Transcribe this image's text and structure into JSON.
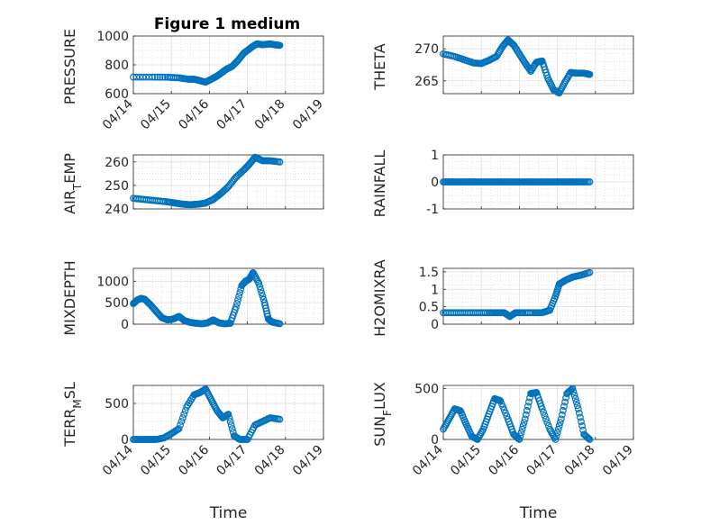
{
  "figure": {
    "title": "Figure 1 medium"
  },
  "chart_data": [
    {
      "type": "scatter",
      "subplot": "1",
      "ylabel": "PRESSURE",
      "ylim": [
        600,
        1000
      ],
      "yticks": [
        "600",
        "800",
        "1000"
      ],
      "xlim": [
        "04/14",
        "04/19"
      ],
      "xticks": [
        "04/14",
        "04/15",
        "04/16",
        "04/17",
        "04/18",
        "04/19"
      ],
      "xlabel": "",
      "grid": true,
      "minor_grid": true,
      "marker": "open-circle",
      "color": "#0072BD",
      "series": [
        {
          "x": [
            0.0,
            0.5,
            0.9,
            1.2,
            1.45,
            1.6,
            1.75,
            1.9,
            2.05,
            2.2,
            2.35,
            2.45,
            2.6,
            2.75,
            2.9,
            3.05,
            3.15,
            3.25,
            3.4,
            3.6,
            3.75,
            3.85
          ],
          "y": [
            715,
            715,
            714,
            710,
            700,
            700,
            690,
            680,
            700,
            722,
            750,
            770,
            790,
            830,
            880,
            910,
            930,
            945,
            940,
            945,
            938,
            935
          ]
        }
      ]
    },
    {
      "type": "scatter",
      "subplot": "2",
      "ylabel": "THETA",
      "ylim": [
        263,
        272
      ],
      "yticks": [
        "265",
        "270"
      ],
      "xlim": [
        "04/14",
        "04/19"
      ],
      "xlabel": "",
      "grid": true,
      "minor_grid": true,
      "series": [
        {
          "x": [
            0.0,
            0.3,
            0.55,
            0.8,
            1.0,
            1.2,
            1.4,
            1.55,
            1.7,
            1.85,
            2.0,
            2.15,
            2.3,
            2.45,
            2.6,
            2.75,
            2.9,
            3.05,
            3.2,
            3.35,
            3.5,
            3.7,
            3.85
          ],
          "y": [
            269.2,
            268.8,
            268.3,
            267.8,
            267.7,
            268.2,
            268.8,
            270.3,
            271.4,
            270.6,
            269.2,
            267.8,
            266.5,
            267.9,
            268.1,
            265.4,
            263.6,
            263.1,
            264.8,
            266.3,
            266.2,
            266.2,
            266.0
          ]
        }
      ]
    },
    {
      "type": "scatter",
      "subplot": "3",
      "ylabel": "AIR_TEMP",
      "ylim": [
        240,
        263
      ],
      "yticks": [
        "240",
        "250",
        "260"
      ],
      "xlim": [
        "04/14",
        "04/19"
      ],
      "xlabel": "",
      "grid": true,
      "minor_grid": true,
      "series": [
        {
          "x": [
            0.0,
            0.3,
            0.6,
            0.9,
            1.1,
            1.3,
            1.5,
            1.7,
            1.9,
            2.1,
            2.3,
            2.5,
            2.7,
            2.9,
            3.05,
            3.2,
            3.4,
            3.6,
            3.85
          ],
          "y": [
            244.5,
            244,
            243.5,
            243,
            242.5,
            242,
            241.8,
            242,
            242.5,
            244,
            246.5,
            249.5,
            253.5,
            256.5,
            259,
            262,
            260.5,
            260.5,
            260
          ]
        }
      ]
    },
    {
      "type": "scatter",
      "subplot": "4",
      "ylabel": "RAINFALL",
      "ylim": [
        -1,
        1
      ],
      "yticks": [
        "-1",
        "0",
        "1"
      ],
      "xlim": [
        "04/14",
        "04/19"
      ],
      "xlabel": "",
      "grid": true,
      "minor_grid": true,
      "series": [
        {
          "x": [
            0.0,
            0.2,
            0.4,
            0.6,
            0.8,
            1.0,
            1.2,
            1.4,
            1.6,
            1.8,
            2.0,
            2.2,
            2.4,
            2.6,
            2.8,
            3.0,
            3.2,
            3.4,
            3.6,
            3.85
          ],
          "y": [
            0,
            0,
            0,
            0,
            0,
            0,
            0,
            0,
            0,
            0,
            0,
            0,
            0,
            0,
            0,
            0,
            0,
            0,
            0,
            0
          ]
        }
      ]
    },
    {
      "type": "scatter",
      "subplot": "5",
      "ylabel": "MIXDEPTH",
      "ylim": [
        0,
        1300
      ],
      "yticks": [
        "0",
        "500",
        "1000"
      ],
      "xlim": [
        "04/14",
        "04/19"
      ],
      "xlabel": "",
      "grid": true,
      "minor_grid": true,
      "series": [
        {
          "x": [
            0.0,
            0.1,
            0.2,
            0.3,
            0.45,
            0.6,
            0.75,
            0.9,
            1.05,
            1.2,
            1.35,
            1.5,
            1.65,
            1.8,
            1.95,
            2.1,
            2.25,
            2.4,
            2.55,
            2.7,
            2.85,
            2.95,
            3.05,
            3.15,
            3.3,
            3.45,
            3.55,
            3.65,
            3.85
          ],
          "y": [
            480,
            560,
            600,
            580,
            450,
            300,
            150,
            100,
            120,
            180,
            80,
            40,
            20,
            10,
            30,
            100,
            30,
            10,
            20,
            400,
            900,
            1000,
            1050,
            1200,
            950,
            500,
            120,
            50,
            10
          ]
        }
      ]
    },
    {
      "type": "scatter",
      "subplot": "6",
      "ylabel": "H2OMIXRA",
      "ylim": [
        0,
        1.6
      ],
      "yticks": [
        "0",
        "0.5",
        "1",
        "1.5"
      ],
      "xlim": [
        "04/14",
        "04/19"
      ],
      "xlabel": "",
      "grid": true,
      "minor_grid": true,
      "series": [
        {
          "x": [
            0.0,
            0.3,
            0.6,
            0.9,
            1.2,
            1.4,
            1.6,
            1.75,
            1.9,
            2.1,
            2.4,
            2.6,
            2.8,
            2.95,
            3.05,
            3.2,
            3.4,
            3.6,
            3.85
          ],
          "y": [
            0.33,
            0.33,
            0.33,
            0.33,
            0.33,
            0.33,
            0.33,
            0.22,
            0.33,
            0.33,
            0.33,
            0.33,
            0.4,
            0.8,
            1.15,
            1.25,
            1.35,
            1.4,
            1.48
          ]
        }
      ]
    },
    {
      "type": "scatter",
      "subplot": "7",
      "ylabel": "TERR_MSL",
      "ylim": [
        0,
        750
      ],
      "yticks": [
        "0",
        "500"
      ],
      "xlim": [
        "04/14",
        "04/19"
      ],
      "xticks": [
        "04/14",
        "04/15",
        "04/16",
        "04/17",
        "04/18",
        "04/19"
      ],
      "xlabel": "Time",
      "grid": true,
      "minor_grid": true,
      "series": [
        {
          "x": [
            0.0,
            0.2,
            0.4,
            0.6,
            0.8,
            1.0,
            1.2,
            1.4,
            1.6,
            1.75,
            1.9,
            2.05,
            2.2,
            2.35,
            2.5,
            2.65,
            2.8,
            3.0,
            3.2,
            3.4,
            3.6,
            3.85
          ],
          "y": [
            0,
            0,
            0,
            0,
            20,
            80,
            150,
            450,
            620,
            650,
            700,
            550,
            400,
            300,
            350,
            50,
            0,
            0,
            200,
            250,
            300,
            280
          ]
        }
      ]
    },
    {
      "type": "scatter",
      "subplot": "8",
      "ylabel": "SUN_FLUX",
      "ylim": [
        0,
        530
      ],
      "yticks": [
        "0",
        "500"
      ],
      "xlim": [
        "04/14",
        "04/19"
      ],
      "xticks": [
        "04/14",
        "04/15",
        "04/16",
        "04/17",
        "04/18",
        "04/19"
      ],
      "xlabel": "Time",
      "grid": true,
      "minor_grid": true,
      "series": [
        {
          "x": [
            0.0,
            0.15,
            0.3,
            0.45,
            0.6,
            0.75,
            0.9,
            1.05,
            1.2,
            1.35,
            1.5,
            1.7,
            1.85,
            2.0,
            2.15,
            2.3,
            2.45,
            2.6,
            2.8,
            2.95,
            3.1,
            3.25,
            3.4,
            3.55,
            3.7,
            3.85
          ],
          "y": [
            100,
            200,
            300,
            280,
            150,
            30,
            0,
            100,
            250,
            400,
            380,
            200,
            50,
            0,
            200,
            450,
            460,
            300,
            100,
            0,
            200,
            450,
            500,
            300,
            50,
            0
          ]
        }
      ]
    }
  ]
}
